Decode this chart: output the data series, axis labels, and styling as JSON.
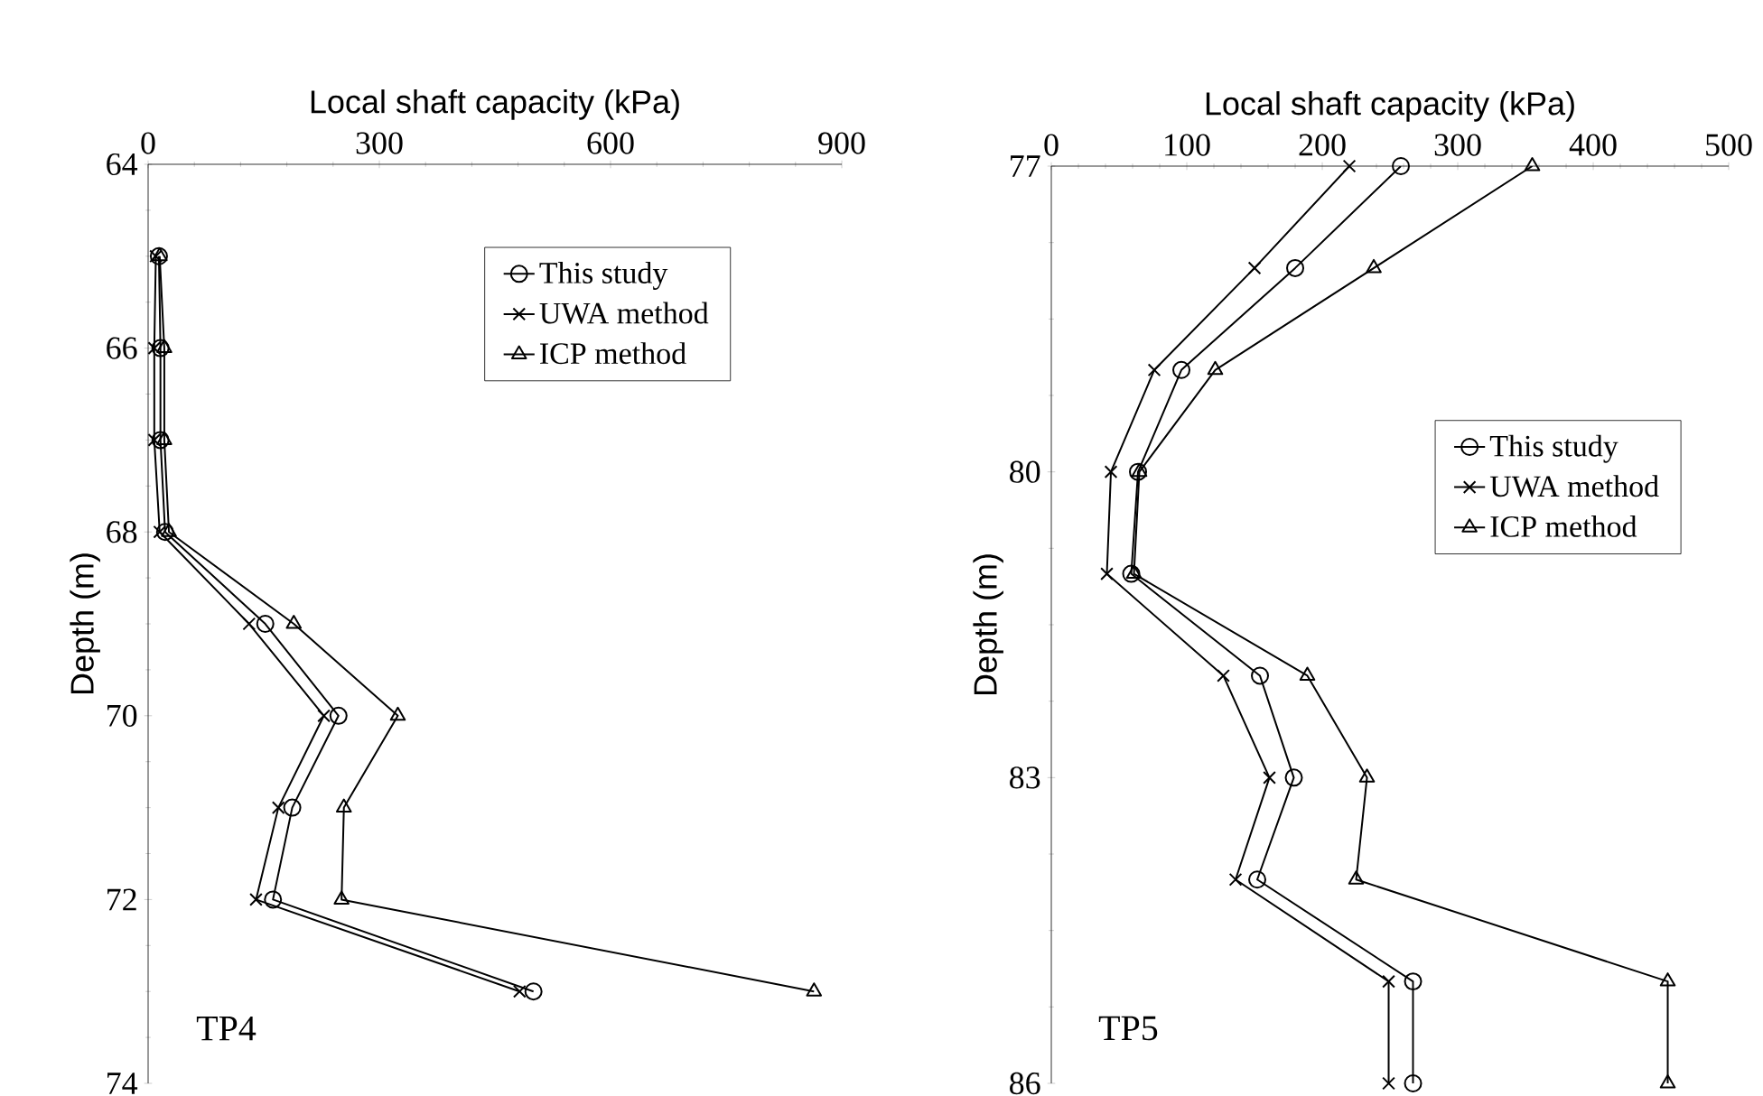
{
  "chart_data": [
    {
      "type": "line",
      "xlabel": "Local shaft capacity (kPa)",
      "ylabel": "Depth (m)",
      "xlim": [
        0,
        900
      ],
      "xticks": [
        0,
        300,
        600,
        900
      ],
      "ylim": [
        74,
        64
      ],
      "yticks": [
        64,
        66,
        68,
        70,
        72,
        74
      ],
      "legend": "top right",
      "annotations": [
        "TP4"
      ],
      "series": [
        {
          "name": "This study",
          "color": "#000000",
          "marker": "circle",
          "x": [
            14,
            16,
            16,
            22,
            152,
            247,
            187,
            162,
            500
          ],
          "values": [
            65,
            66,
            67,
            68,
            69,
            70,
            71,
            72,
            73
          ]
        },
        {
          "name": "UWA method",
          "color": "#000000",
          "marker": "cross",
          "x": [
            10,
            8,
            8,
            15,
            131,
            228,
            169,
            140,
            482
          ],
          "values": [
            65,
            66,
            67,
            68,
            69,
            70,
            71,
            72,
            73
          ]
        },
        {
          "name": "ICP method",
          "color": "#000000",
          "marker": "triangle",
          "x": [
            15,
            21,
            21,
            27,
            189,
            324,
            254,
            251,
            864
          ],
          "values": [
            65,
            66,
            67,
            68,
            69,
            70,
            71,
            72,
            73
          ]
        }
      ]
    },
    {
      "type": "line",
      "xlabel": "Local shaft capacity (kPa)",
      "ylabel": "Depth (m)",
      "xlim": [
        0,
        500
      ],
      "xticks": [
        0,
        100,
        200,
        300,
        400,
        500
      ],
      "ylim": [
        86,
        77
      ],
      "yticks": [
        77,
        80,
        83,
        86
      ],
      "legend": "right",
      "annotations": [
        "TP5"
      ],
      "series": [
        {
          "name": "This study",
          "color": "#000000",
          "marker": "circle",
          "x": [
            258,
            180,
            96,
            64,
            59,
            154,
            179,
            152,
            267,
            267
          ],
          "values": [
            77,
            78,
            79,
            80,
            81,
            82,
            83,
            84,
            85,
            86
          ]
        },
        {
          "name": "UWA method",
          "color": "#000000",
          "marker": "cross",
          "x": [
            220,
            150,
            76,
            44,
            41,
            127,
            161,
            136,
            249,
            249
          ],
          "values": [
            77,
            78,
            79,
            80,
            81,
            82,
            83,
            84,
            85,
            86
          ]
        },
        {
          "name": "ICP method",
          "color": "#000000",
          "marker": "triangle",
          "x": [
            355,
            238,
            121,
            65,
            61,
            189,
            233,
            225,
            455,
            455
          ],
          "values": [
            77,
            78,
            79,
            80,
            81,
            82,
            83,
            84,
            85,
            86
          ]
        }
      ]
    }
  ]
}
